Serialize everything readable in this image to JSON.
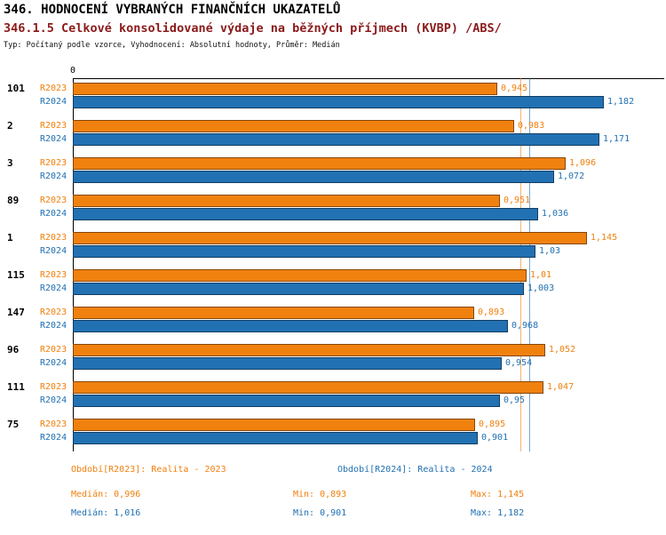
{
  "header": {
    "title": "346. HODNOCENÍ VYBRANÝCH FINANČNÍCH UKAZATELŮ",
    "subtitle": "346.1.5 Celkové konsolidované výdaje na běžných příjmech (KVBP) /ABS/",
    "meta": "Typ: Počítaný podle vzorce, Vyhodnocení: Absolutní hodnoty, Průměr: Medián"
  },
  "colors": {
    "r2023": "#F0810F",
    "r2024": "#2271B3",
    "subtitle": "#8B1A1A",
    "axis": "#000000"
  },
  "chart_data": {
    "type": "bar",
    "orientation": "horizontal",
    "title": "346. HODNOCENÍ VYBRANÝCH FINANČNÍCH UKAZATELŮ",
    "subtitle": "346.1.5 Celkové konsolidované výdaje na běžných příjmech (KVBP) /ABS/",
    "x_zero_label": "0",
    "xlim": [
      0,
      1.3
    ],
    "grid": false,
    "legend_position": "bottom",
    "categories": [
      "101",
      "2",
      "3",
      "89",
      "1",
      "115",
      "147",
      "96",
      "111",
      "75"
    ],
    "series": [
      {
        "name": "R2023",
        "color": "#F0810F",
        "values": [
          0.945,
          0.983,
          1.096,
          0.951,
          1.145,
          1.01,
          0.893,
          1.052,
          1.047,
          0.895
        ],
        "value_labels": [
          "0,945",
          "0,983",
          "1,096",
          "0,951",
          "1,145",
          "1,01",
          "0,893",
          "1,052",
          "1,047",
          "0,895"
        ],
        "median": 0.996,
        "min": 0.893,
        "max": 1.145
      },
      {
        "name": "R2024",
        "color": "#2271B3",
        "values": [
          1.182,
          1.171,
          1.072,
          1.036,
          1.03,
          1.003,
          0.968,
          0.954,
          0.95,
          0.901
        ],
        "value_labels": [
          "1,182",
          "1,171",
          "1,072",
          "1,036",
          "1,03",
          "1,003",
          "0,968",
          "0,954",
          "0,95",
          "0,901"
        ],
        "median": 1.016,
        "min": 0.901,
        "max": 1.182
      }
    ],
    "median_lines": [
      {
        "series": "R2023",
        "value": 0.996
      },
      {
        "series": "R2024",
        "value": 1.016
      }
    ]
  },
  "legend": {
    "r2023": {
      "label": "Období[R2023]: Realita - 2023",
      "median": "Medián: 0,996",
      "min": "Min: 0,893",
      "max": "Max: 1,145"
    },
    "r2024": {
      "label": "Období[R2024]: Realita - 2024",
      "median": "Medián: 1,016",
      "min": "Min: 0,901",
      "max": "Max: 1,182"
    }
  }
}
